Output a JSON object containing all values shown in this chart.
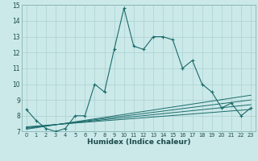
{
  "xlabel": "Humidex (Indice chaleur)",
  "xlim": [
    -0.5,
    23.5
  ],
  "ylim": [
    7,
    15
  ],
  "xticks": [
    0,
    1,
    2,
    3,
    4,
    5,
    6,
    7,
    8,
    9,
    10,
    11,
    12,
    13,
    14,
    15,
    16,
    17,
    18,
    19,
    20,
    21,
    22,
    23
  ],
  "yticks": [
    7,
    8,
    9,
    10,
    11,
    12,
    13,
    14,
    15
  ],
  "bg_color": "#cce9e9",
  "grid_color": "#b0d4d4",
  "line_color": "#1a6b6b",
  "main_x": [
    0,
    1,
    2,
    3,
    4,
    5,
    6,
    7,
    8,
    9,
    10,
    11,
    12,
    13,
    14,
    15,
    16,
    17,
    18,
    19,
    20,
    21,
    22,
    23
  ],
  "main_y": [
    8.4,
    7.7,
    7.2,
    7.0,
    7.2,
    8.0,
    8.0,
    10.0,
    9.5,
    12.2,
    14.8,
    12.4,
    12.2,
    13.0,
    13.0,
    12.8,
    11.0,
    11.5,
    10.0,
    9.5,
    8.5,
    8.8,
    8.0,
    8.5
  ],
  "diag_lines": [
    {
      "x": [
        0,
        23
      ],
      "y": [
        7.15,
        9.3
      ]
    },
    {
      "x": [
        0,
        23
      ],
      "y": [
        7.2,
        9.0
      ]
    },
    {
      "x": [
        0,
        23
      ],
      "y": [
        7.25,
        8.7
      ]
    },
    {
      "x": [
        0,
        23
      ],
      "y": [
        7.3,
        8.4
      ]
    }
  ]
}
